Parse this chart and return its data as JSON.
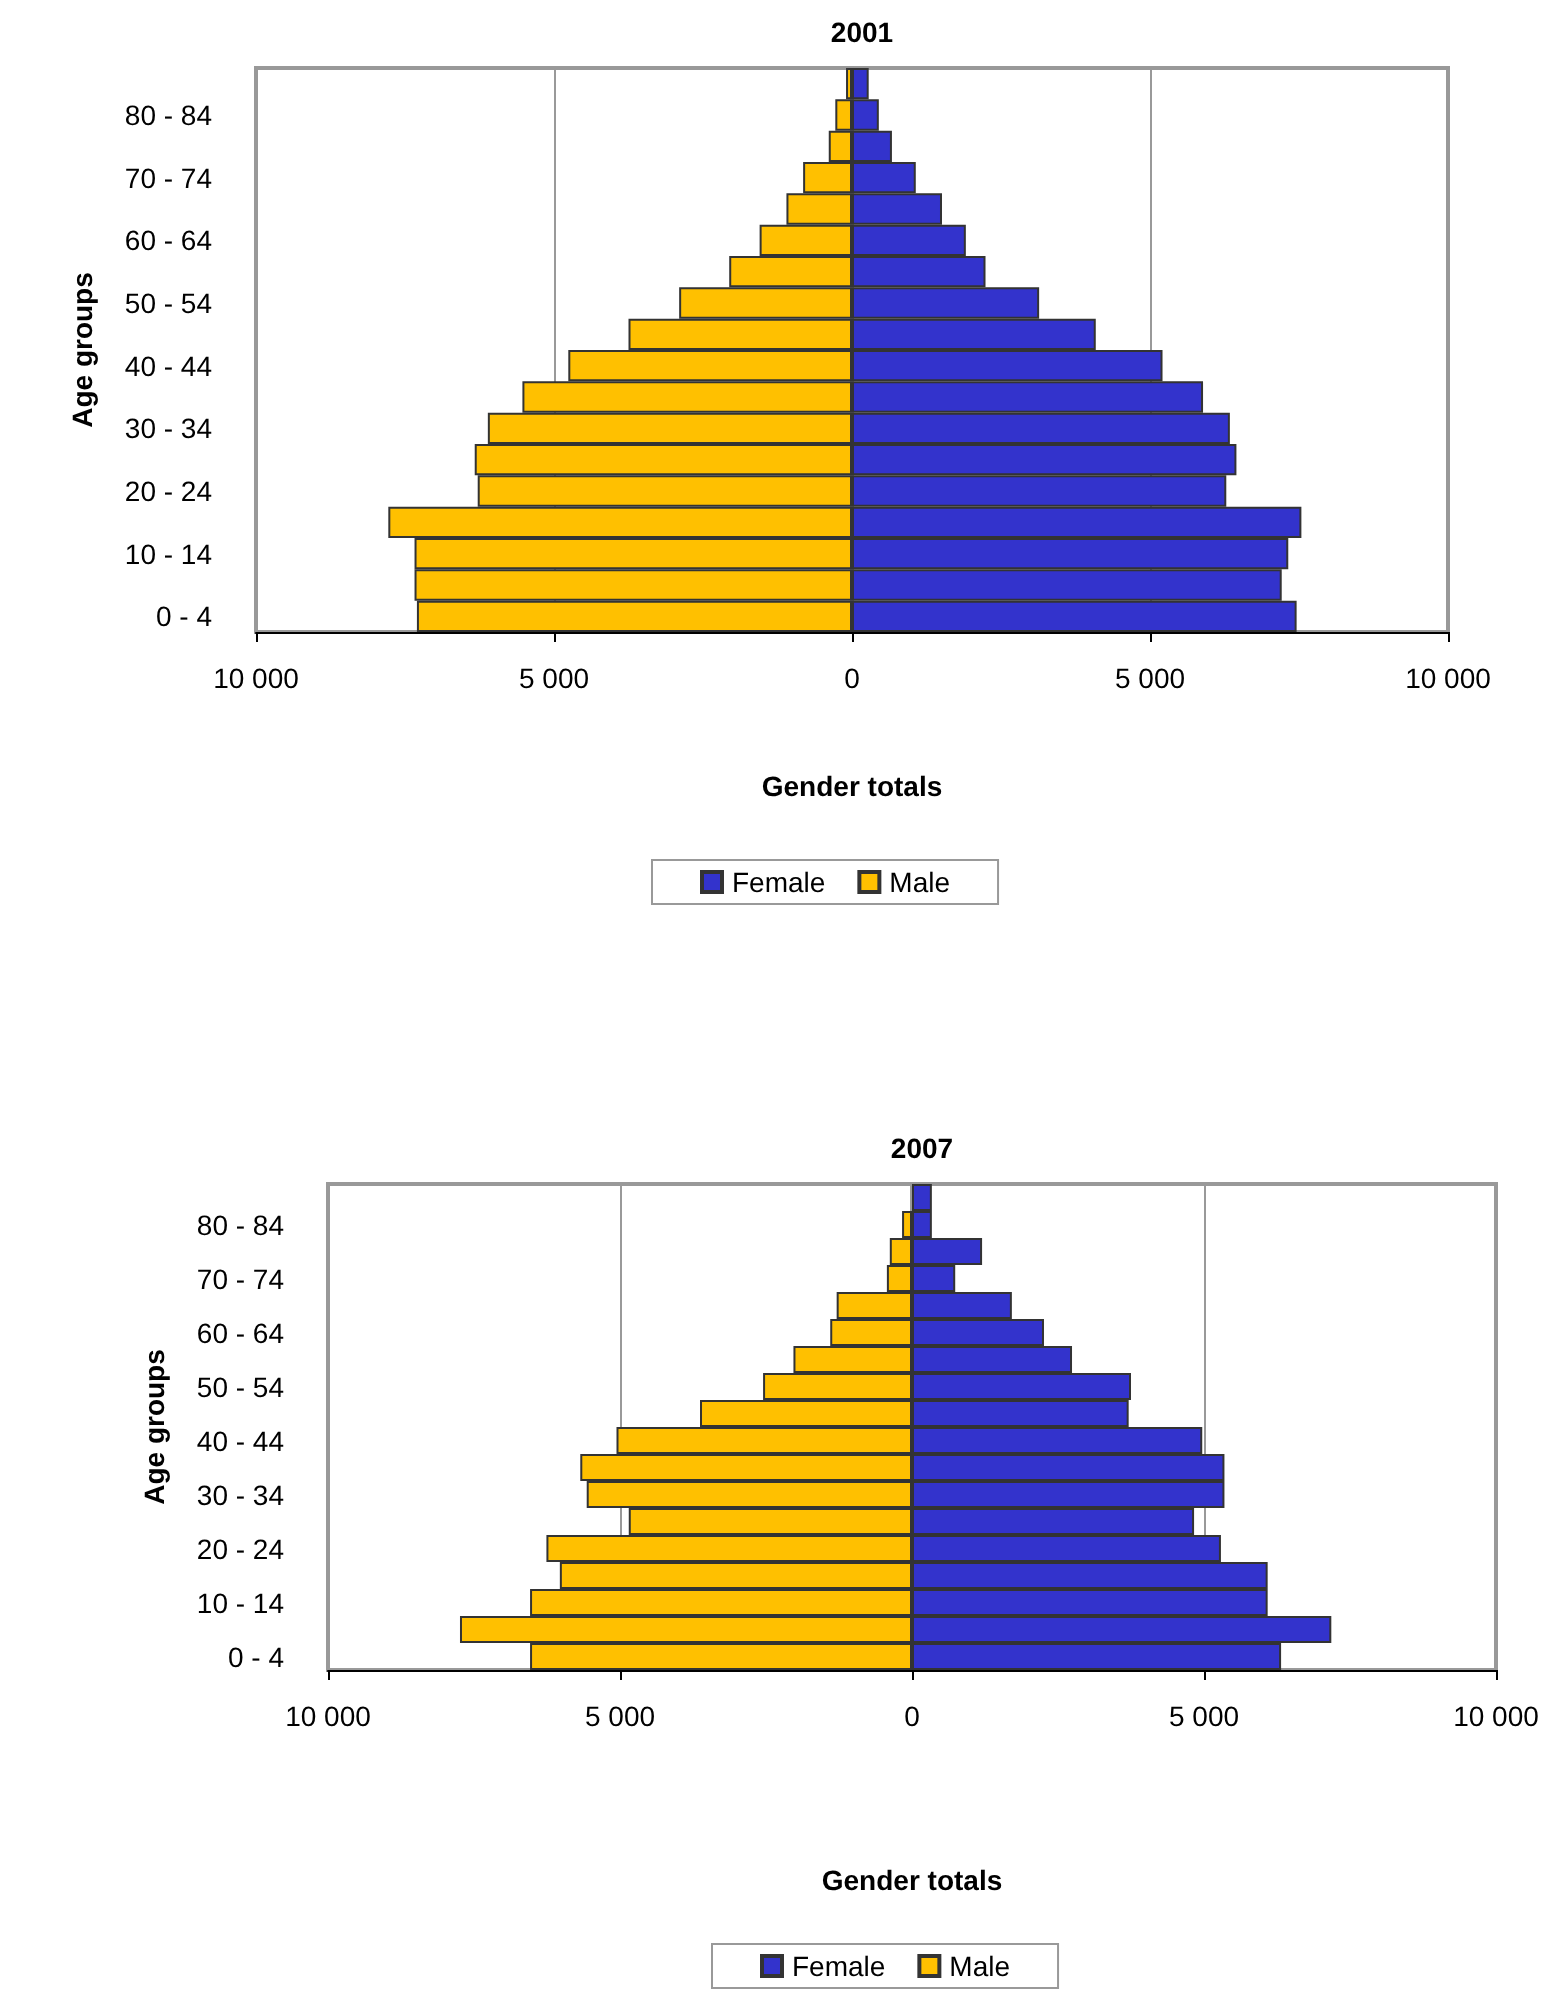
{
  "chart_data": [
    {
      "type": "bar",
      "title": "2001",
      "xlabel": "Gender totals",
      "ylabel": "Age groups",
      "orientation": "horizontal",
      "stacked": true,
      "categories": [
        null,
        "80 - 84",
        null,
        "70 - 74",
        null,
        "60 - 64",
        null,
        "50 - 54",
        null,
        "40 - 44",
        null,
        "30 - 34",
        null,
        "20 - 24",
        null,
        "10 - 14",
        null,
        "0 - 4"
      ],
      "series": [
        {
          "name": "Female",
          "color": "#3333cc",
          "values": [
            280,
            450,
            670,
            1070,
            1510,
            1910,
            2240,
            3140,
            4090,
            5210,
            5890,
            6340,
            6450,
            6280,
            7540,
            7320,
            7210,
            7460
          ]
        },
        {
          "name": "Male",
          "color": "#ffc000",
          "values": [
            -100,
            -280,
            -390,
            -820,
            -1100,
            -1550,
            -2060,
            -2900,
            -3750,
            -4760,
            -5530,
            -6110,
            -6330,
            -6280,
            -7780,
            -7340,
            -7340,
            -7300
          ]
        }
      ],
      "xlim": [
        -10000,
        10000
      ],
      "xticks": [
        {
          "value": -10000,
          "label": "10 000"
        },
        {
          "value": -5000,
          "label": "5 000"
        },
        0,
        {
          "value": 5000,
          "label": "5 000"
        },
        {
          "value": 10000,
          "label": "10 000"
        }
      ],
      "grid": "x",
      "legend": "bottom"
    },
    {
      "type": "bar",
      "title": "2007",
      "xlabel": "Gender totals",
      "ylabel": "Age groups",
      "orientation": "horizontal",
      "stacked": true,
      "categories": [
        null,
        "80 - 84",
        null,
        "70 - 74",
        null,
        "60 - 64",
        null,
        "50 - 54",
        null,
        "40 - 44",
        null,
        "30 - 34",
        null,
        "20 - 24",
        null,
        "10 - 14",
        null,
        "0 - 4"
      ],
      "series": [
        {
          "name": "Female",
          "color": "#3333cc",
          "values": [
            340,
            340,
            1200,
            740,
            1710,
            2260,
            2740,
            3750,
            3710,
            4970,
            5350,
            5350,
            4830,
            5290,
            6090,
            6090,
            7180,
            6320
          ]
        },
        {
          "name": "Male",
          "color": "#ffc000",
          "values": [
            null,
            -170,
            -380,
            -430,
            -1290,
            -1400,
            -2030,
            -2550,
            -3630,
            -5060,
            -5680,
            -5570,
            -4850,
            -6260,
            -6030,
            -6540,
            -7740,
            -6540
          ]
        }
      ],
      "xlim": [
        -10000,
        10000
      ],
      "xticks": [
        {
          "value": -10000,
          "label": "10 000"
        },
        {
          "value": -5000,
          "label": "5 000"
        },
        0,
        {
          "value": 5000,
          "label": "5 000"
        },
        {
          "value": 10000,
          "label": "10 000"
        }
      ],
      "grid": "x",
      "legend": "bottom"
    }
  ]
}
